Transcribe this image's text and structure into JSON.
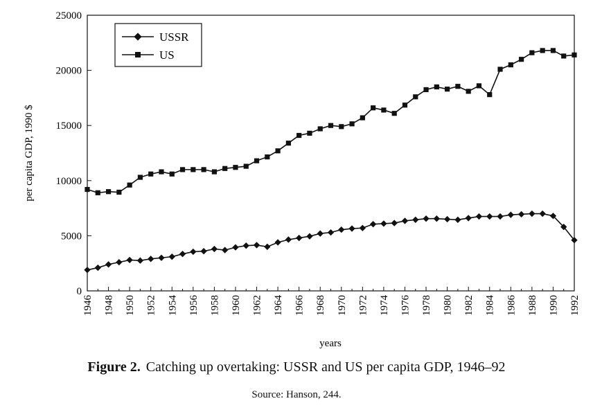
{
  "chart_data": {
    "type": "line",
    "title": "",
    "xlabel": "years",
    "ylabel": "per capita GDP, 1990 $",
    "ylim": [
      0,
      25000
    ],
    "yticks": [
      0,
      5000,
      10000,
      15000,
      20000,
      25000
    ],
    "xlim": [
      1946,
      1992
    ],
    "xticks": [
      1946,
      1948,
      1950,
      1952,
      1954,
      1956,
      1958,
      1960,
      1962,
      1964,
      1966,
      1968,
      1970,
      1972,
      1974,
      1976,
      1978,
      1980,
      1982,
      1984,
      1986,
      1988,
      1990,
      1992
    ],
    "legend": "top-left",
    "x": [
      1946,
      1947,
      1948,
      1949,
      1950,
      1951,
      1952,
      1953,
      1954,
      1955,
      1956,
      1957,
      1958,
      1959,
      1960,
      1961,
      1962,
      1963,
      1964,
      1965,
      1966,
      1967,
      1968,
      1969,
      1970,
      1971,
      1972,
      1973,
      1974,
      1975,
      1976,
      1977,
      1978,
      1979,
      1980,
      1981,
      1982,
      1983,
      1984,
      1985,
      1986,
      1987,
      1988,
      1989,
      1990,
      1991,
      1992
    ],
    "series": [
      {
        "name": "USSR",
        "marker": "diamond",
        "values": [
          1900,
          2100,
          2400,
          2600,
          2800,
          2750,
          2900,
          3000,
          3100,
          3350,
          3550,
          3600,
          3800,
          3700,
          3950,
          4100,
          4150,
          4000,
          4400,
          4650,
          4800,
          4950,
          5200,
          5300,
          5550,
          5650,
          5700,
          6050,
          6100,
          6150,
          6350,
          6450,
          6550,
          6550,
          6500,
          6450,
          6600,
          6750,
          6750,
          6750,
          6900,
          6950,
          7000,
          7000,
          6800,
          5800,
          4600
        ]
      },
      {
        "name": "US",
        "marker": "square",
        "values": [
          9200,
          8900,
          9000,
          8950,
          9600,
          10300,
          10600,
          10800,
          10600,
          11000,
          11000,
          11000,
          10800,
          11100,
          11200,
          11300,
          11800,
          12150,
          12700,
          13400,
          14100,
          14300,
          14700,
          15000,
          14900,
          15150,
          15700,
          16600,
          16400,
          16100,
          16850,
          17600,
          18250,
          18500,
          18300,
          18550,
          18100,
          18600,
          17800,
          20100,
          20500,
          21000,
          21600,
          21800,
          21800,
          21300,
          21400
        ]
      }
    ]
  },
  "caption": {
    "figure_label": "Figure 2.",
    "text": "Catching up overtaking: USSR and US per capita GDP, 1946–92",
    "source": "Source: Hanson, 244."
  }
}
